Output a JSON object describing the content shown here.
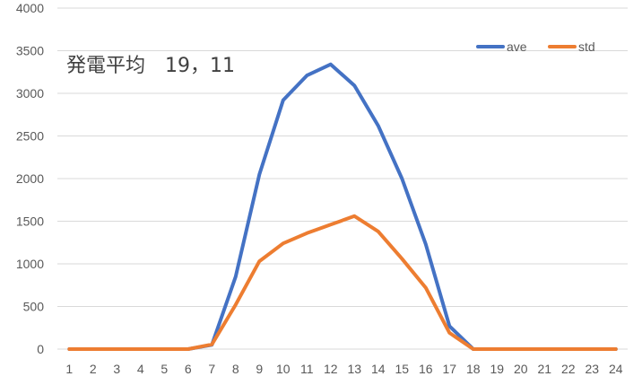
{
  "chart_data": {
    "type": "line",
    "title": "発電平均　19，11",
    "xlabel": "",
    "ylabel": "",
    "categories": [
      "1",
      "2",
      "3",
      "4",
      "5",
      "6",
      "7",
      "8",
      "9",
      "10",
      "11",
      "12",
      "13",
      "14",
      "15",
      "16",
      "17",
      "18",
      "19",
      "20",
      "21",
      "22",
      "23",
      "24"
    ],
    "ylim": [
      0,
      4000
    ],
    "yticks": [
      0,
      500,
      1000,
      1500,
      2000,
      2500,
      3000,
      3500,
      4000
    ],
    "grid": true,
    "legend": "top-right",
    "series": [
      {
        "name": "ave",
        "color": "#4472C4",
        "values": [
          0,
          0,
          0,
          0,
          0,
          0,
          50,
          850,
          2050,
          2920,
          3210,
          3340,
          3090,
          2620,
          2000,
          1230,
          270,
          0,
          0,
          0,
          0,
          0,
          0,
          0
        ]
      },
      {
        "name": "std",
        "color": "#ED7D31",
        "values": [
          0,
          0,
          0,
          0,
          0,
          0,
          55,
          520,
          1030,
          1240,
          1360,
          1460,
          1560,
          1380,
          1060,
          720,
          190,
          0,
          0,
          0,
          0,
          0,
          0,
          0
        ]
      }
    ]
  }
}
